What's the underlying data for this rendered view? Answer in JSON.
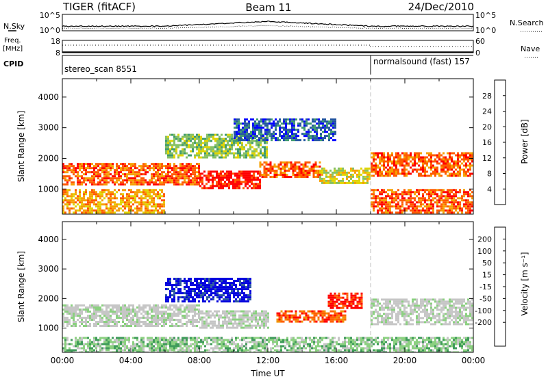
{
  "header": {
    "radar_title": "TIGER (fitACF)",
    "beam_label": "Beam 11",
    "date_label": "24/Dec/2010"
  },
  "top_panels": {
    "nsky": {
      "label": "N.Sky",
      "left_ticks": [
        "10^5",
        "10^0"
      ],
      "right_label": "N.Search",
      "right_ticks": [
        "10^5",
        "10^0"
      ]
    },
    "freq": {
      "label_line1": "Freq.",
      "label_line2": "[MHz]",
      "left_ticks": [
        "18",
        "8"
      ],
      "right_label": "Nave",
      "right_ticks": [
        "60",
        "0"
      ]
    },
    "cpid": {
      "label": "CPID",
      "segments": [
        {
          "text": "stereo_scan 8551",
          "start_hour": 0
        },
        {
          "text": "normalsound (fast) 157",
          "start_hour": 18
        }
      ]
    }
  },
  "colors": {
    "power": [
      "#0000ff",
      "#2255a0",
      "#3e9a6e",
      "#86c062",
      "#e0d400",
      "#f6a000",
      "#ff5a00",
      "#ff0000"
    ],
    "velocity": [
      "#0000dd",
      "#2a56a0",
      "#3f9b5a",
      "#8bd080",
      "#c6c6c6",
      "#c6c6c6",
      "#f5c800",
      "#f09000",
      "#ff6000",
      "#ff0000"
    ],
    "line": "#000000",
    "dashed": "#c0c0c0"
  },
  "chart_data": [
    {
      "type": "heatmap",
      "title": "Power",
      "xlabel": "",
      "ylabel": "Slant Range [km]",
      "xlim": [
        0,
        24
      ],
      "ylim": [
        180,
        4600
      ],
      "yticks": [
        "1000",
        "2000",
        "3000",
        "4000"
      ],
      "ytick_values": [
        1000,
        2000,
        3000,
        4000
      ],
      "colorbar": {
        "label": "Power [dB]",
        "ticks": [
          "4",
          "8",
          "12",
          "16",
          "20",
          "24",
          "28"
        ],
        "tick_values": [
          4,
          8,
          12,
          16,
          20,
          24,
          28
        ],
        "range": [
          0,
          32
        ]
      },
      "regions": [
        {
          "x": [
            0.0,
            8.0
          ],
          "y": [
            1150,
            1850
          ],
          "level": 6
        },
        {
          "x": [
            8.0,
            11.5
          ],
          "y": [
            1000,
            1600
          ],
          "level": 7
        },
        {
          "x": [
            11.5,
            15.0
          ],
          "y": [
            1400,
            1900
          ],
          "level": 6
        },
        {
          "x": [
            15.0,
            18.0
          ],
          "y": [
            1200,
            1700
          ],
          "level": 4
        },
        {
          "x": [
            18.0,
            24.0
          ],
          "y": [
            1400,
            2200
          ],
          "level": 6
        },
        {
          "x": [
            0.0,
            6.0
          ],
          "y": [
            200,
            1000
          ],
          "level": 5
        },
        {
          "x": [
            18.0,
            24.0
          ],
          "y": [
            200,
            1000
          ],
          "level": 6
        },
        {
          "x": [
            6.0,
            12.0
          ],
          "y": [
            2000,
            2800
          ],
          "level": 3
        },
        {
          "x": [
            10.0,
            16.0
          ],
          "y": [
            2600,
            3300
          ],
          "level": 1
        }
      ]
    },
    {
      "type": "heatmap",
      "title": "Velocity",
      "xlabel": "Time UT",
      "ylabel": "Slant Range [km]",
      "xlim": [
        0,
        24
      ],
      "ylim": [
        180,
        4600
      ],
      "xticks": [
        "00:00",
        "04:00",
        "08:00",
        "12:00",
        "16:00",
        "20:00",
        "00:00"
      ],
      "xtick_values": [
        0,
        4,
        8,
        12,
        16,
        20,
        24
      ],
      "yticks": [
        "1000",
        "2000",
        "3000",
        "4000"
      ],
      "ytick_values": [
        1000,
        2000,
        3000,
        4000
      ],
      "colorbar": {
        "label": "Velocity [m s⁻¹]",
        "ticks": [
          "200",
          "100",
          "50",
          "15",
          "-15",
          "-50",
          "-100",
          "-200"
        ],
        "tick_values": [
          200,
          100,
          50,
          15,
          -15,
          -50,
          -100,
          -200
        ]
      },
      "regions": [
        {
          "x": [
            0.0,
            8.0
          ],
          "y": [
            1100,
            1800
          ],
          "level": 4
        },
        {
          "x": [
            8.0,
            12.0
          ],
          "y": [
            1000,
            1600
          ],
          "level": 4
        },
        {
          "x": [
            18.0,
            24.0
          ],
          "y": [
            1100,
            2000
          ],
          "level": 4
        },
        {
          "x": [
            6.0,
            11.0
          ],
          "y": [
            1900,
            2700
          ],
          "level": 0
        },
        {
          "x": [
            12.5,
            16.5
          ],
          "y": [
            1200,
            1600
          ],
          "level": 8
        },
        {
          "x": [
            15.5,
            17.5
          ],
          "y": [
            1700,
            2200
          ],
          "level": 9
        },
        {
          "x": [
            0.0,
            24.0
          ],
          "y": [
            200,
            700
          ],
          "level": 3
        }
      ]
    }
  ]
}
